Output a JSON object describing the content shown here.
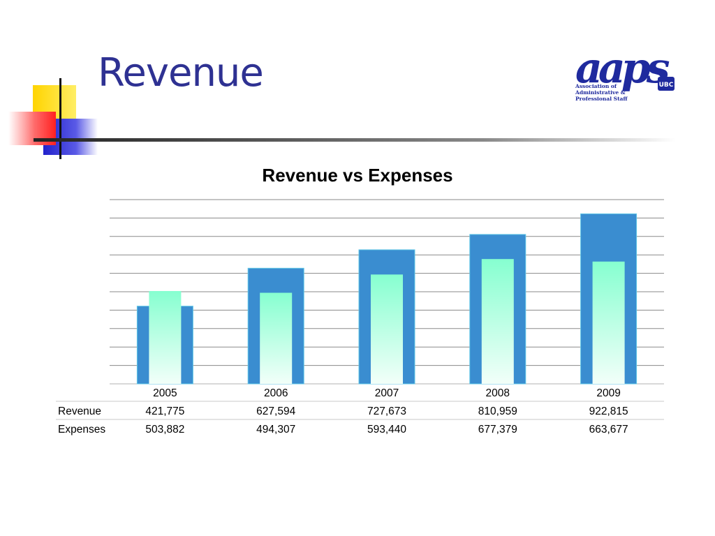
{
  "slide": {
    "title": "Revenue"
  },
  "logo": {
    "wordmark": "aaps",
    "badge": "UBC",
    "line1": "Association of",
    "line2": "Administrative &",
    "line3": "Professional Staff"
  },
  "chart_data": {
    "type": "bar",
    "title": "Revenue vs Expenses",
    "categories": [
      "2005",
      "2006",
      "2007",
      "2008",
      "2009"
    ],
    "series": [
      {
        "name": "Revenue",
        "values": [
          421775,
          627594,
          727673,
          810959,
          922815
        ],
        "color": "#3a8dd0"
      },
      {
        "name": "Expenses",
        "values": [
          503882,
          494307,
          593440,
          677379,
          663677
        ],
        "color": "#86ffd0"
      }
    ],
    "ylim": [
      0,
      1000000
    ],
    "grid": true,
    "xlabel": "",
    "ylabel": "",
    "data_table": true
  }
}
